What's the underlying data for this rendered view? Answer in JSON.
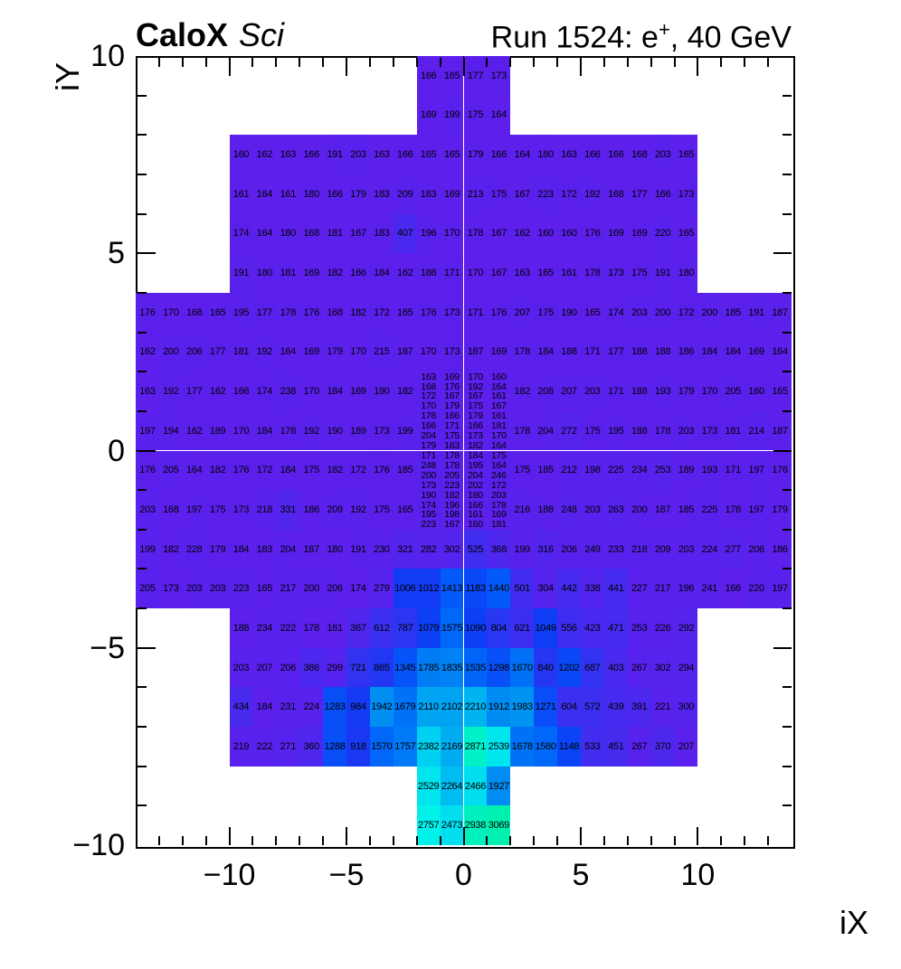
{
  "header": {
    "left_title_bold": "CaloX",
    "left_title_italic": "Sci",
    "right_title_pre": "Run 1524: e",
    "right_title_sup": "+",
    "right_title_post": ", 40 GeV"
  },
  "chart_data": {
    "type": "heatmap",
    "title": "CaloX Sci — Run 1524: e+, 40 GeV",
    "xlabel": "iX",
    "ylabel": "iY",
    "x_range": [
      -14,
      14
    ],
    "y_range": [
      -10,
      10
    ],
    "x_ticks": [
      {
        "v": -10,
        "label": "−10"
      },
      {
        "v": -5,
        "label": "−5"
      },
      {
        "v": 0,
        "label": "0"
      },
      {
        "v": 5,
        "label": "5"
      },
      {
        "v": 10,
        "label": "10"
      }
    ],
    "y_ticks": [
      {
        "v": 10,
        "label": "10"
      },
      {
        "v": 5,
        "label": "5"
      },
      {
        "v": 0,
        "label": "0"
      },
      {
        "v": -5,
        "label": "−5"
      },
      {
        "v": -10,
        "label": "−10"
      }
    ],
    "grid": false,
    "legend": "none",
    "cell_text_color": "#000000",
    "palette_anchors": [
      [
        160,
        "#5C1FEC"
      ],
      [
        300,
        "#5523EE"
      ],
      [
        460,
        "#452BEF"
      ],
      [
        620,
        "#3A2FF0"
      ],
      [
        800,
        "#2A36F2"
      ],
      [
        950,
        "#1638F4"
      ],
      [
        1100,
        "#0C40F6"
      ],
      [
        1300,
        "#0850F8"
      ],
      [
        1500,
        "#0060FA"
      ],
      [
        1700,
        "#0074F7"
      ],
      [
        1900,
        "#0089F2"
      ],
      [
        2100,
        "#00A2F2"
      ],
      [
        2450,
        "#00DCF0"
      ],
      [
        2550,
        "#00E6EE"
      ],
      [
        2760,
        "#00F0EA"
      ],
      [
        2880,
        "#00F0C6"
      ],
      [
        3000,
        "#00EFB6"
      ],
      [
        3100,
        "#00F0AC"
      ]
    ],
    "rows": [
      {
        "y": 9.5,
        "x0": -2,
        "values": [
          166,
          165,
          177,
          173
        ]
      },
      {
        "y": 8.5,
        "x0": -2,
        "values": [
          169,
          199,
          175,
          164
        ]
      },
      {
        "y": 7.5,
        "x0": -10,
        "values": [
          160,
          162,
          163,
          166,
          191,
          203,
          163,
          166,
          165,
          165,
          179,
          166,
          164,
          180,
          163,
          166,
          166,
          168,
          203,
          165
        ]
      },
      {
        "y": 6.5,
        "x0": -10,
        "values": [
          161,
          164,
          161,
          180,
          166,
          179,
          183,
          209,
          183,
          169,
          213,
          175,
          167,
          223,
          172,
          192,
          168,
          177,
          166,
          173
        ]
      },
      {
        "y": 5.5,
        "x0": -10,
        "values": [
          174,
          164,
          180,
          168,
          181,
          167,
          183,
          407,
          196,
          170,
          178,
          167,
          162,
          160,
          160,
          176,
          169,
          169,
          220,
          165
        ]
      },
      {
        "y": 4.5,
        "x0": -10,
        "values": [
          191,
          180,
          181,
          169,
          182,
          166,
          184,
          162,
          188,
          171,
          170,
          167,
          163,
          165,
          161,
          178,
          173,
          175,
          191,
          180
        ]
      },
      {
        "y": 3.5,
        "x0": -14,
        "values": [
          176,
          170,
          168,
          165,
          195,
          177,
          178,
          176,
          168,
          182,
          172,
          165,
          176,
          173,
          171,
          176,
          207,
          175,
          190,
          165,
          174,
          203,
          200,
          172,
          200,
          185,
          191,
          187
        ]
      },
      {
        "y": 2.5,
        "x0": -14,
        "values": [
          162,
          200,
          206,
          177,
          181,
          192,
          164,
          169,
          179,
          170,
          215,
          187,
          170,
          173,
          187,
          169,
          178,
          184,
          188,
          171,
          177,
          188,
          188,
          186,
          184,
          184,
          169,
          164
        ]
      },
      {
        "y": 1.5,
        "x0": -14,
        "values": [
          163,
          192,
          177,
          162,
          166,
          174,
          238,
          170,
          184,
          169,
          190,
          182
        ]
      },
      {
        "y": 1.5,
        "x0": 2,
        "values": [
          182,
          208,
          207,
          203,
          171,
          188,
          193,
          179,
          170,
          205,
          160,
          165
        ]
      },
      {
        "y": 0.5,
        "x0": -14,
        "values": [
          197,
          194,
          162,
          189,
          170,
          184,
          178,
          192,
          190,
          189,
          173,
          199
        ]
      },
      {
        "y": 0.5,
        "x0": 2,
        "values": [
          178,
          204,
          272,
          175,
          195,
          188,
          178,
          203,
          173,
          181,
          214,
          187
        ]
      },
      {
        "y": -0.5,
        "x0": -14,
        "values": [
          176,
          205,
          164,
          182,
          176,
          172,
          184,
          175,
          182,
          172,
          176,
          185
        ]
      },
      {
        "y": -0.5,
        "x0": 2,
        "values": [
          175,
          185,
          212,
          198,
          225,
          234,
          253,
          189,
          193,
          171,
          197,
          176
        ]
      },
      {
        "y": -1.5,
        "x0": -14,
        "values": [
          203,
          168,
          197,
          175,
          173,
          218,
          331,
          186,
          209,
          192,
          175,
          165
        ]
      },
      {
        "y": -1.5,
        "x0": 2,
        "values": [
          216,
          188,
          248,
          203,
          263,
          200,
          187,
          185,
          225,
          178,
          197,
          179
        ]
      },
      {
        "y": -2.5,
        "x0": -14,
        "values": [
          199,
          182,
          228,
          179,
          184,
          183,
          204,
          187,
          180,
          191,
          230,
          321,
          282,
          302,
          525,
          368,
          199,
          316,
          206,
          249,
          233,
          218,
          209,
          203,
          224,
          277,
          206,
          186
        ]
      },
      {
        "y": -3.5,
        "x0": -14,
        "values": [
          205,
          173,
          203,
          203,
          223,
          165,
          217,
          200,
          206,
          174,
          279,
          1006,
          1012,
          1413,
          1183,
          1440,
          501,
          304,
          442,
          338,
          441,
          227,
          217,
          196,
          241,
          166,
          220,
          197
        ]
      },
      {
        "y": -4.5,
        "x0": -10,
        "values": [
          188,
          234,
          222,
          178,
          181,
          367,
          612,
          787,
          1079,
          1575,
          1090,
          804,
          621,
          1049,
          556,
          423,
          471,
          253,
          226,
          292
        ]
      },
      {
        "y": -5.5,
        "x0": -10,
        "values": [
          203,
          207,
          206,
          386,
          299,
          721,
          865,
          1345,
          1785,
          1835,
          1535,
          1298,
          1670,
          840,
          1202,
          687,
          403,
          267,
          302,
          294
        ]
      },
      {
        "y": -6.5,
        "x0": -10,
        "values": [
          434,
          184,
          231,
          224,
          1283,
          984,
          1942,
          1679,
          2110,
          2102,
          2210,
          1912,
          1983,
          1271,
          604,
          572,
          439,
          391,
          221,
          300
        ]
      },
      {
        "y": -7.5,
        "x0": -10,
        "values": [
          219,
          222,
          271,
          360,
          1288,
          918,
          1570,
          1757,
          2382,
          2169,
          2871,
          2539,
          1678,
          1580,
          1148,
          533,
          451,
          267,
          370,
          207
        ]
      },
      {
        "y": -8.5,
        "x0": -2,
        "values": [
          2529,
          2264,
          2466,
          1927
        ]
      },
      {
        "y": -9.5,
        "x0": -2,
        "values": [
          2757,
          2473,
          2938,
          3069
        ]
      }
    ],
    "center_fine_block": {
      "x0": -2,
      "y_top": 2,
      "cell_w": 1,
      "cell_h": 0.25,
      "values": [
        [
          163,
          169,
          170,
          160
        ],
        [
          168,
          176,
          192,
          164
        ],
        [
          172,
          167,
          167,
          161
        ],
        [
          170,
          179,
          175,
          167
        ],
        [
          178,
          166,
          179,
          161
        ],
        [
          166,
          171,
          166,
          181
        ],
        [
          204,
          175,
          173,
          170
        ],
        [
          179,
          183,
          182,
          164
        ],
        [
          171,
          178,
          184,
          175
        ],
        [
          248,
          178,
          195,
          164
        ],
        [
          200,
          205,
          204,
          246
        ],
        [
          173,
          223,
          202,
          172
        ],
        [
          190,
          182,
          180,
          203
        ],
        [
          174,
          196,
          166,
          178
        ],
        [
          195,
          198,
          161,
          169
        ],
        [
          223,
          167,
          160,
          181
        ]
      ]
    }
  }
}
